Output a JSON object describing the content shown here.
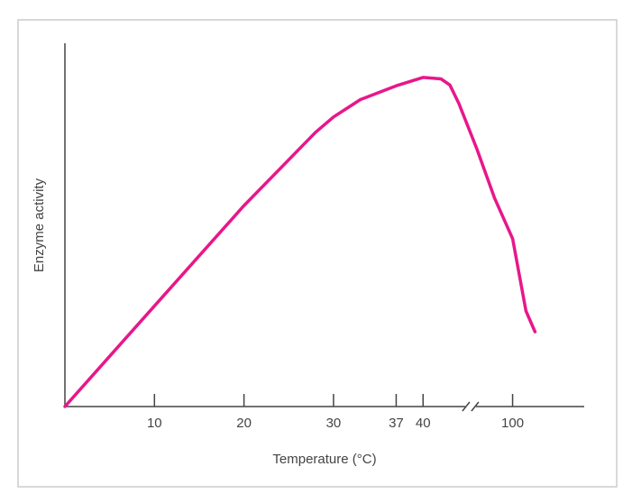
{
  "chart_data": {
    "type": "line",
    "xlabel": "Temperature (°C)",
    "ylabel": "Enzyme activity",
    "x": [
      0,
      10,
      20,
      28,
      30,
      33,
      37,
      40,
      42,
      43,
      44,
      96,
      98,
      100,
      101.5,
      102.5
    ],
    "series": [
      {
        "color": "#e8178a",
        "values": [
          0,
          27.7,
          55.3,
          75.5,
          79.7,
          84.5,
          88.3,
          90.6,
          90.2,
          88.5,
          83.4,
          71,
          57.3,
          46.2,
          26.3,
          20.6
        ]
      }
    ],
    "xlim": [
      0,
      108
    ],
    "xticks": [
      10,
      20,
      30,
      37,
      40,
      100
    ],
    "axis_break": [
      45,
      95
    ],
    "ylim": [
      0,
      100
    ]
  }
}
